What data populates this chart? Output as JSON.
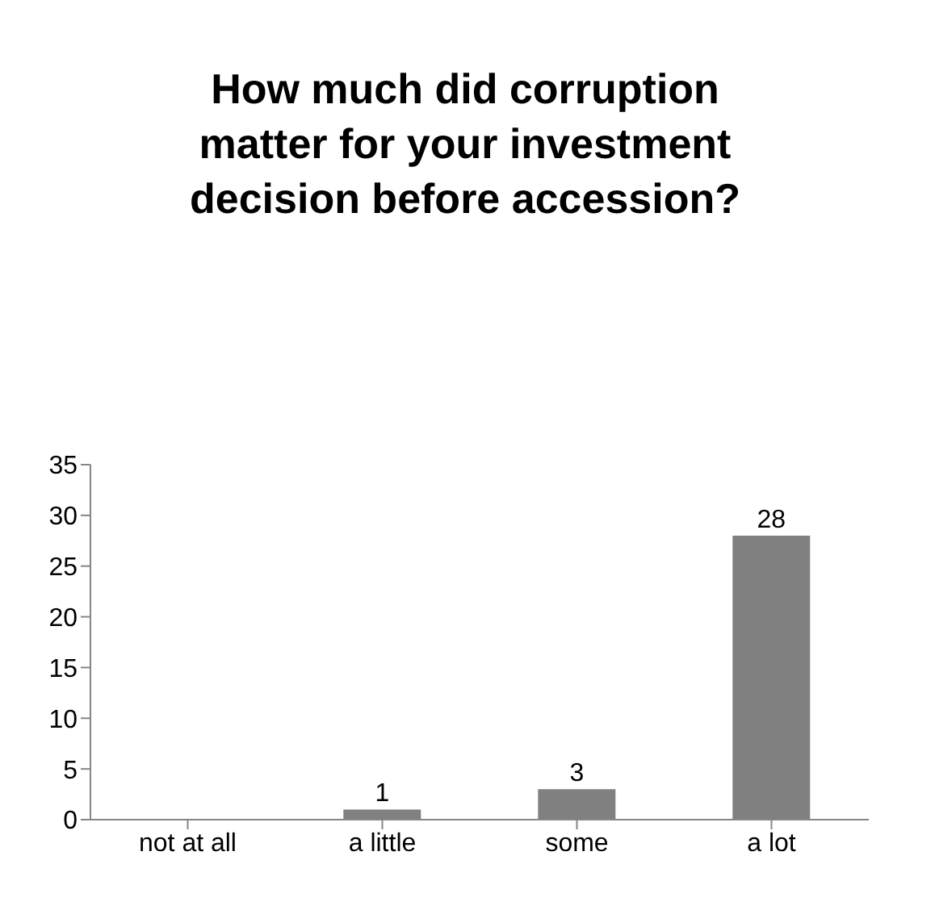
{
  "chart_data": {
    "type": "bar",
    "title": "How much did corruption matter for your investment decision before accession?",
    "categories": [
      "not at all",
      "a little",
      "some",
      "a lot"
    ],
    "values": [
      0,
      1,
      3,
      28
    ],
    "value_labels": [
      null,
      "1",
      "3",
      "28"
    ],
    "color": "#808080",
    "ylim": [
      0,
      35
    ],
    "yticks": [
      0,
      5,
      10,
      15,
      20,
      25,
      30,
      35
    ],
    "grid": false,
    "legend": false
  }
}
